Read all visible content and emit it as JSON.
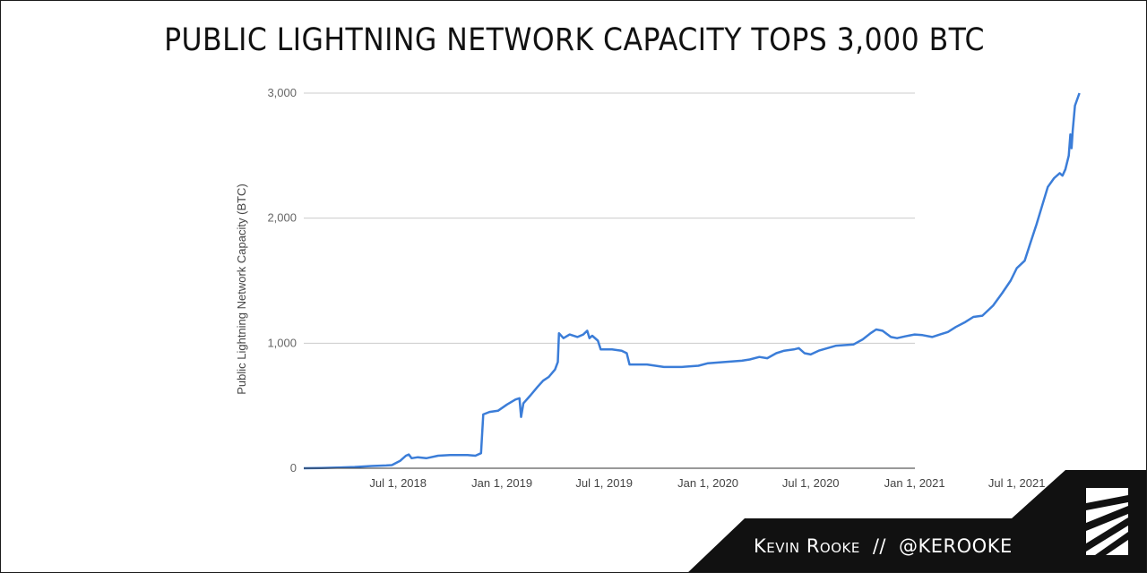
{
  "chart_data": {
    "type": "line",
    "title": "PUBLIC LIGHTNING NETWORK CAPACITY TOPS 3,000 BTC",
    "xlabel": "",
    "ylabel": "Public Lightning Network Capacity (BTC)",
    "ylim": [
      0,
      3000
    ],
    "y_ticks": [
      "0",
      "1,000",
      "2,000",
      "3,000"
    ],
    "x_ticks": [
      "Jul 1, 2018",
      "Jan 1, 2019",
      "Jul 1, 2019",
      "Jan 1, 2020",
      "Jul 1, 2020",
      "Jan 1, 2021",
      "Jul 1, 2021"
    ],
    "grid": true,
    "legend": "none",
    "series_color": "#3b7dd8",
    "series": [
      {
        "points": [
          [
            "2018-01-15",
            0
          ],
          [
            "2018-02-15",
            2
          ],
          [
            "2018-03-15",
            5
          ],
          [
            "2018-04-15",
            10
          ],
          [
            "2018-05-15",
            18
          ],
          [
            "2018-06-10",
            22
          ],
          [
            "2018-06-20",
            25
          ],
          [
            "2018-07-05",
            60
          ],
          [
            "2018-07-15",
            100
          ],
          [
            "2018-07-20",
            110
          ],
          [
            "2018-07-25",
            80
          ],
          [
            "2018-08-05",
            88
          ],
          [
            "2018-08-20",
            80
          ],
          [
            "2018-09-10",
            100
          ],
          [
            "2018-10-01",
            105
          ],
          [
            "2018-11-01",
            105
          ],
          [
            "2018-11-15",
            100
          ],
          [
            "2018-11-25",
            120
          ],
          [
            "2018-11-29",
            430
          ],
          [
            "2018-12-10",
            450
          ],
          [
            "2018-12-25",
            460
          ],
          [
            "2019-01-10",
            510
          ],
          [
            "2019-01-25",
            550
          ],
          [
            "2019-02-01",
            560
          ],
          [
            "2019-02-04",
            410
          ],
          [
            "2019-02-08",
            520
          ],
          [
            "2019-02-20",
            580
          ],
          [
            "2019-03-05",
            650
          ],
          [
            "2019-03-15",
            700
          ],
          [
            "2019-03-25",
            730
          ],
          [
            "2019-04-05",
            790
          ],
          [
            "2019-04-10",
            850
          ],
          [
            "2019-04-12",
            1080
          ],
          [
            "2019-04-20",
            1040
          ],
          [
            "2019-05-01",
            1070
          ],
          [
            "2019-05-15",
            1050
          ],
          [
            "2019-05-25",
            1070
          ],
          [
            "2019-06-01",
            1100
          ],
          [
            "2019-06-05",
            1040
          ],
          [
            "2019-06-10",
            1060
          ],
          [
            "2019-06-20",
            1020
          ],
          [
            "2019-06-25",
            950
          ],
          [
            "2019-07-15",
            950
          ],
          [
            "2019-08-01",
            940
          ],
          [
            "2019-08-10",
            920
          ],
          [
            "2019-08-15",
            830
          ],
          [
            "2019-09-15",
            830
          ],
          [
            "2019-10-15",
            810
          ],
          [
            "2019-11-15",
            810
          ],
          [
            "2019-12-15",
            820
          ],
          [
            "2020-01-01",
            840
          ],
          [
            "2020-02-01",
            850
          ],
          [
            "2020-03-01",
            860
          ],
          [
            "2020-03-15",
            870
          ],
          [
            "2020-04-01",
            890
          ],
          [
            "2020-04-15",
            880
          ],
          [
            "2020-05-01",
            920
          ],
          [
            "2020-05-15",
            940
          ],
          [
            "2020-06-01",
            950
          ],
          [
            "2020-06-10",
            960
          ],
          [
            "2020-06-20",
            920
          ],
          [
            "2020-07-01",
            910
          ],
          [
            "2020-07-15",
            940
          ],
          [
            "2020-08-15",
            980
          ],
          [
            "2020-09-15",
            990
          ],
          [
            "2020-10-01",
            1030
          ],
          [
            "2020-10-15",
            1080
          ],
          [
            "2020-10-25",
            1110
          ],
          [
            "2020-11-05",
            1100
          ],
          [
            "2020-11-20",
            1050
          ],
          [
            "2020-12-01",
            1040
          ],
          [
            "2020-12-15",
            1055
          ],
          [
            "2021-01-01",
            1070
          ],
          [
            "2021-01-15",
            1065
          ],
          [
            "2021-02-01",
            1050
          ],
          [
            "2021-02-15",
            1070
          ],
          [
            "2021-03-01",
            1090
          ],
          [
            "2021-03-15",
            1130
          ],
          [
            "2021-04-01",
            1170
          ],
          [
            "2021-04-15",
            1210
          ],
          [
            "2021-05-01",
            1220
          ],
          [
            "2021-05-20",
            1300
          ],
          [
            "2021-06-05",
            1400
          ],
          [
            "2021-06-20",
            1500
          ],
          [
            "2021-07-01",
            1600
          ],
          [
            "2021-07-15",
            1660
          ],
          [
            "2021-07-25",
            1800
          ],
          [
            "2021-08-05",
            1950
          ],
          [
            "2021-08-15",
            2100
          ],
          [
            "2021-08-25",
            2250
          ],
          [
            "2021-09-05",
            2320
          ],
          [
            "2021-09-15",
            2360
          ],
          [
            "2021-09-20",
            2340
          ],
          [
            "2021-09-25",
            2390
          ],
          [
            "2021-10-01",
            2500
          ],
          [
            "2021-10-04",
            2670
          ],
          [
            "2021-10-06",
            2560
          ],
          [
            "2021-10-08",
            2700
          ],
          [
            "2021-10-12",
            2900
          ],
          [
            "2021-10-20",
            3000
          ]
        ]
      }
    ]
  },
  "footer": {
    "author": "Kevin Rooke",
    "separator": "//",
    "handle": "@KEROOKE"
  }
}
